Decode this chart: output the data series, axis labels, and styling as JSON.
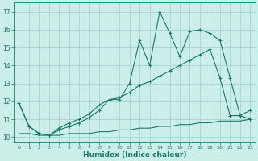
{
  "xlabel": "Humidex (Indice chaleur)",
  "background_color": "#cceee8",
  "grid_color": "#aad4ce",
  "line_color": "#1a7a6e",
  "xlim": [
    -0.5,
    23.5
  ],
  "ylim": [
    9.7,
    17.5
  ],
  "xticks": [
    0,
    1,
    2,
    3,
    4,
    5,
    6,
    7,
    8,
    9,
    10,
    11,
    12,
    13,
    14,
    15,
    16,
    17,
    18,
    19,
    20,
    21,
    22,
    23
  ],
  "yticks": [
    10,
    11,
    12,
    13,
    14,
    15,
    16,
    17
  ],
  "line1_x": [
    0,
    1,
    2,
    3,
    4,
    5,
    6,
    7,
    8,
    9,
    10,
    11,
    12,
    13,
    14,
    15,
    16,
    17,
    18,
    19,
    20,
    21,
    22,
    23
  ],
  "line1_y": [
    11.9,
    10.6,
    10.2,
    10.1,
    10.5,
    10.8,
    11.0,
    11.3,
    11.8,
    12.1,
    12.1,
    13.0,
    15.4,
    14.0,
    17.0,
    15.8,
    14.5,
    15.9,
    16.0,
    15.8,
    15.4,
    13.3,
    11.2,
    11.5
  ],
  "line2_x": [
    0,
    1,
    2,
    3,
    4,
    5,
    6,
    7,
    8,
    9,
    10,
    11,
    12,
    13,
    14,
    15,
    16,
    17,
    18,
    19,
    20,
    21,
    22,
    23
  ],
  "line2_y": [
    11.9,
    10.6,
    10.2,
    10.1,
    10.4,
    10.6,
    10.8,
    11.1,
    11.5,
    12.1,
    12.2,
    12.5,
    12.9,
    13.1,
    13.4,
    13.7,
    14.0,
    14.3,
    14.6,
    14.9,
    13.3,
    11.2,
    11.2,
    11.0
  ],
  "line3_x": [
    0,
    1,
    2,
    3,
    4,
    5,
    6,
    7,
    8,
    9,
    10,
    11,
    12,
    13,
    14,
    15,
    16,
    17,
    18,
    19,
    20,
    21,
    22,
    23
  ],
  "line3_y": [
    10.2,
    10.2,
    10.1,
    10.1,
    10.1,
    10.2,
    10.2,
    10.2,
    10.3,
    10.3,
    10.4,
    10.4,
    10.5,
    10.5,
    10.6,
    10.6,
    10.7,
    10.7,
    10.8,
    10.8,
    10.9,
    10.9,
    10.9,
    11.0
  ]
}
